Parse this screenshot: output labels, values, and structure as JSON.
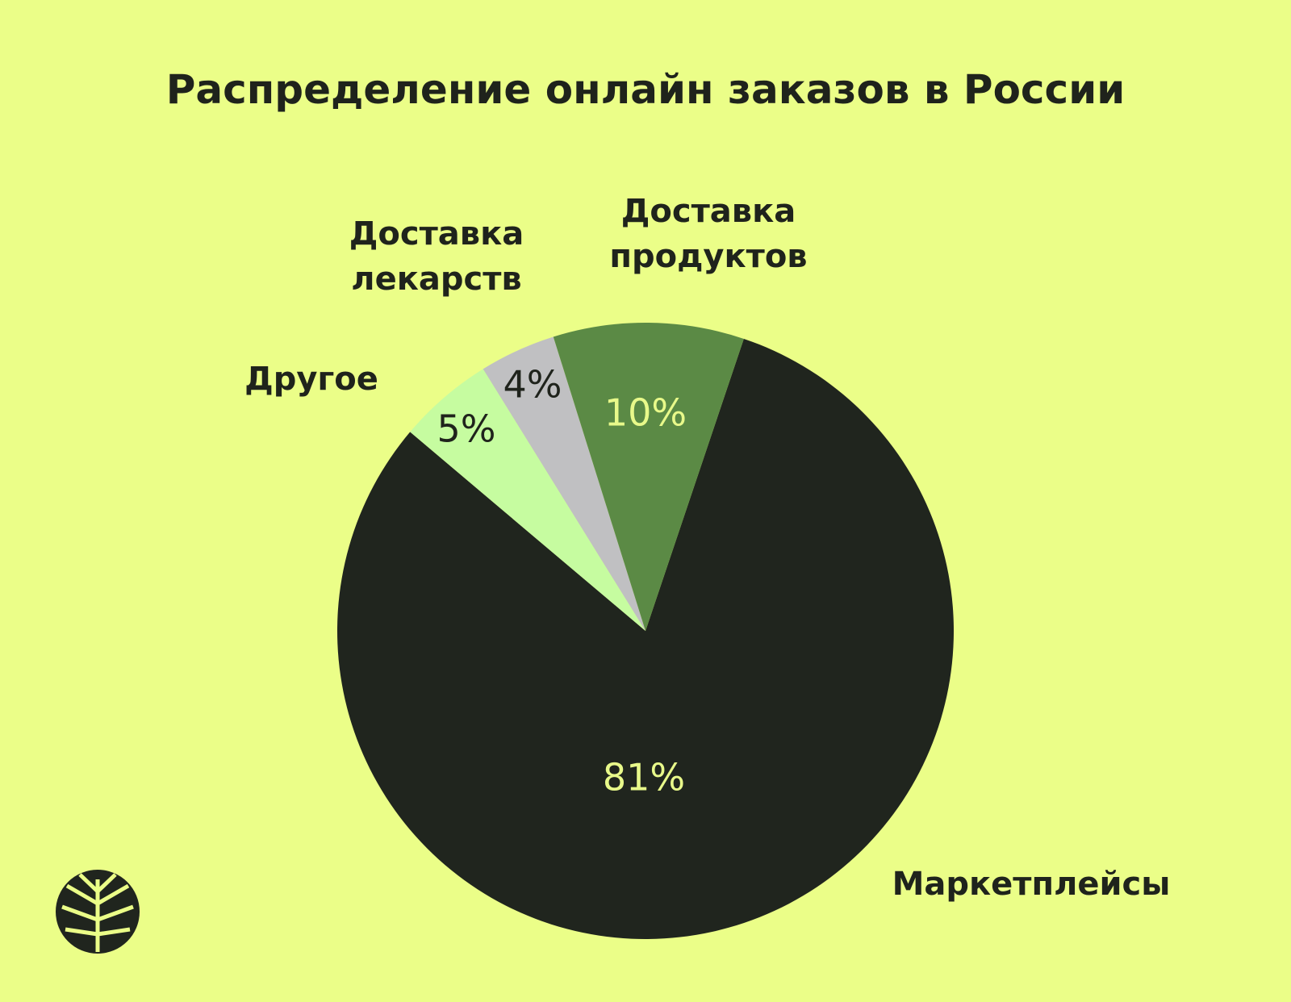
{
  "chart_data": {
    "type": "pie",
    "title": "Распределение онлайн заказов в России",
    "categories": [
      "Маркетплейсы",
      "Другое",
      "Доставка лекарств",
      "Доставка продуктов"
    ],
    "values": [
      81,
      5,
      4,
      10
    ],
    "value_labels": [
      "81%",
      "5%",
      "4%",
      "10%"
    ],
    "colors": [
      "#20251e",
      "#c6fca0",
      "#c0c0c2",
      "#5b8a45"
    ]
  }
}
